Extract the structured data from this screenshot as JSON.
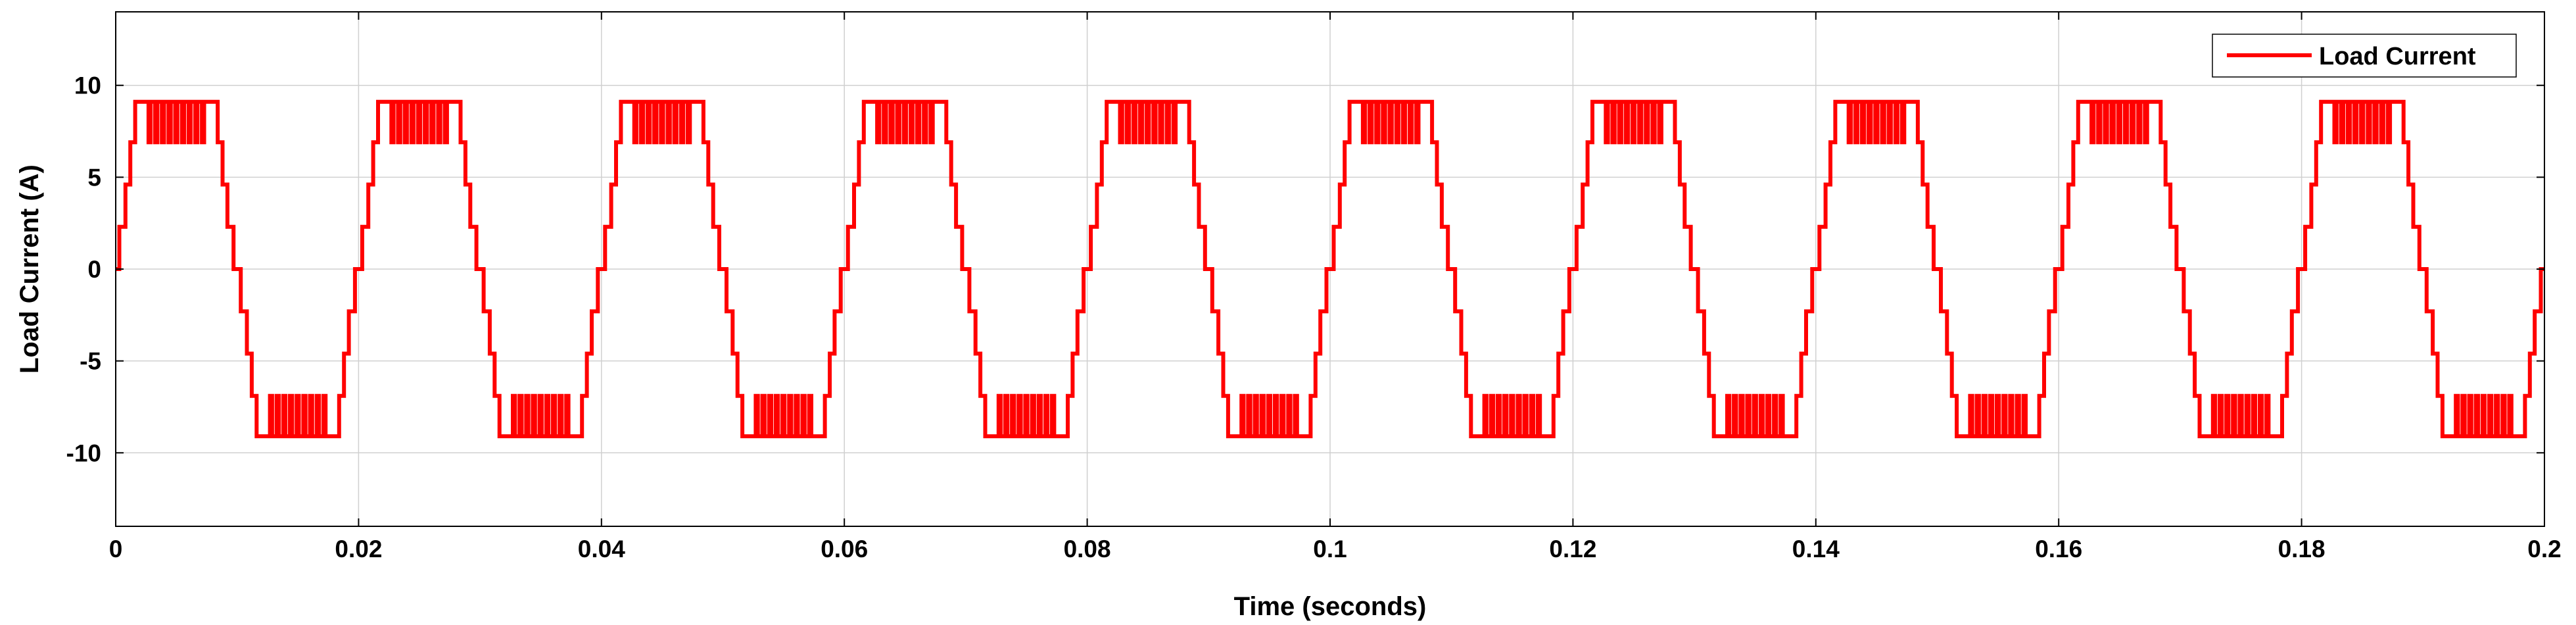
{
  "chart_data": {
    "type": "line",
    "title": "",
    "xlabel": "Time (seconds)",
    "ylabel": "Load Current (A)",
    "xlim": [
      0,
      0.2
    ],
    "ylim": [
      -14,
      14
    ],
    "x_ticks": [
      0,
      0.02,
      0.04,
      0.06,
      0.08,
      0.1,
      0.12,
      0.14,
      0.16,
      0.18,
      0.2
    ],
    "x_tick_labels": [
      "0",
      "0.02",
      "0.04",
      "0.06",
      "0.08",
      "0.1",
      "0.12",
      "0.14",
      "0.16",
      "0.18",
      "0.2"
    ],
    "y_ticks": [
      -10,
      -5,
      0,
      5,
      10
    ],
    "y_tick_labels": [
      "-10",
      "-5",
      "0",
      "5",
      "10"
    ],
    "grid": true,
    "legend_position": "top-right",
    "colors": {
      "series": "#ff0000",
      "axes": "#000000",
      "grid": "#d0d0d0",
      "background": "#ffffff"
    },
    "series": [
      {
        "name": "Load Current",
        "frequency_hz": 50,
        "waveform": "multilevel staircase approximating a sinusoid",
        "amplitude_A": 9.1,
        "levels_A": [
          0,
          2.3,
          4.6,
          6.9,
          9.1
        ],
        "x": [
          0,
          0.0003,
          0.0003,
          0.0008,
          0.0008,
          0.0012,
          0.0012,
          0.0016,
          0.0016,
          0.0025,
          0.0025,
          0.0075,
          0.0075,
          0.0084,
          0.0084,
          0.0088,
          0.0088,
          0.0092,
          0.0092,
          0.0097,
          0.0097,
          0.01
        ],
        "y": [
          0,
          0,
          2.3,
          2.3,
          4.6,
          4.6,
          6.9,
          6.9,
          9.1,
          9.1,
          9.1,
          9.1,
          9.1,
          9.1,
          6.9,
          6.9,
          4.6,
          4.6,
          2.3,
          2.3,
          0,
          0
        ],
        "note_x_unit": "seconds"
      }
    ]
  }
}
